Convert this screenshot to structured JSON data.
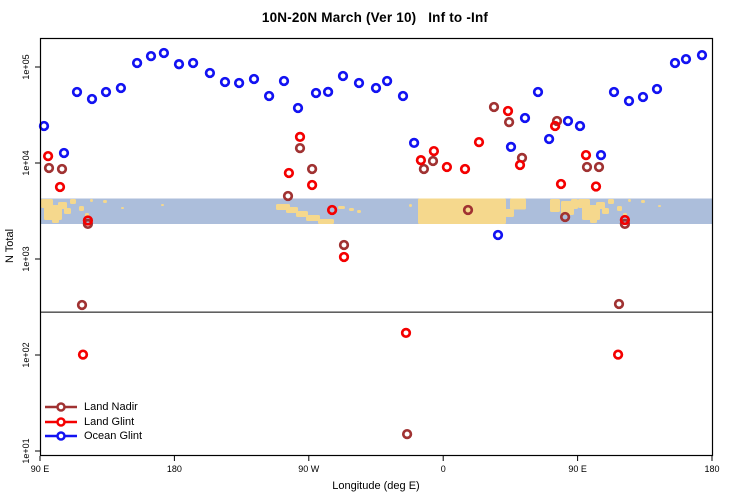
{
  "title": "10N-20N March (Ver 10)   Inf to -Inf",
  "chart_data": {
    "type": "scatter",
    "title": "10N-20N March (Ver 10)   Inf to -Inf",
    "xlabel": "Longitude (deg E)",
    "ylabel": "N Total",
    "grid": false,
    "legend_position": "bottom-left",
    "x_axis": {
      "min": 90,
      "max": 540,
      "ticks": [
        {
          "value": 90,
          "label": "90 E"
        },
        {
          "value": 180,
          "label": "180"
        },
        {
          "value": 270,
          "label": "90 W"
        },
        {
          "value": 360,
          "label": "0"
        },
        {
          "value": 450,
          "label": "90 E"
        },
        {
          "value": 540,
          "label": "180"
        }
      ]
    },
    "y_axis": {
      "scale": "log",
      "min": 10,
      "max": 200000,
      "ticks": [
        {
          "value": 10,
          "label": "1e+01"
        },
        {
          "value": 100,
          "label": "1e+02"
        },
        {
          "value": 1000,
          "label": "1e+03"
        },
        {
          "value": 10000,
          "label": "1e+04"
        },
        {
          "value": 100000,
          "label": "1e+05"
        }
      ]
    },
    "reference_line": {
      "n": 280,
      "color": "#000000"
    },
    "map_band": {
      "n_top": 4300,
      "n_bottom": 2300,
      "ocean_color": "#ACBEDB",
      "land_color": "#F5D88D"
    },
    "series": [
      {
        "name": "Land Nadir",
        "color": "#A03232",
        "points": [
          [
            96.0,
            8870
          ],
          [
            104.7,
            8670
          ],
          [
            118.1,
            332
          ],
          [
            122.1,
            2320
          ],
          [
            256.1,
            4530
          ],
          [
            264.1,
            14300
          ],
          [
            272.2,
            8670
          ],
          [
            293.6,
            1400
          ],
          [
            335.8,
            15
          ],
          [
            347.1,
            8670
          ],
          [
            353.2,
            10500
          ],
          [
            376.6,
            3240
          ],
          [
            394.0,
            38300
          ],
          [
            404.1,
            26700
          ],
          [
            412.8,
            11300
          ],
          [
            436.2,
            27400
          ],
          [
            441.6,
            2740
          ],
          [
            456.3,
            9080
          ],
          [
            464.3,
            9080
          ],
          [
            477.7,
            340
          ],
          [
            481.7,
            2320
          ]
        ]
      },
      {
        "name": "Land Glint",
        "color": "#F40000",
        "points": [
          [
            95.4,
            11800
          ],
          [
            103.4,
            5620
          ],
          [
            118.8,
            101
          ],
          [
            122.1,
            2520
          ],
          [
            256.7,
            7870
          ],
          [
            264.1,
            18700
          ],
          [
            272.2,
            5900
          ],
          [
            285.6,
            3240
          ],
          [
            293.6,
            1050
          ],
          [
            335.1,
            170
          ],
          [
            345.1,
            10700
          ],
          [
            353.8,
            13300
          ],
          [
            362.5,
            9080
          ],
          [
            374.6,
            8670
          ],
          [
            384.0,
            16500
          ],
          [
            403.4,
            34800
          ],
          [
            411.4,
            9530
          ],
          [
            434.9,
            24300
          ],
          [
            438.9,
            6040
          ],
          [
            455.6,
            12100
          ],
          [
            462.3,
            5690
          ],
          [
            477.1,
            101
          ],
          [
            481.7,
            2550
          ]
        ]
      },
      {
        "name": "Ocean Glint",
        "color": "#1212F2",
        "points": [
          [
            92.7,
            24300
          ],
          [
            106.1,
            12700
          ],
          [
            114.8,
            54900
          ],
          [
            124.8,
            46400
          ],
          [
            134.2,
            54900
          ],
          [
            144.2,
            60400
          ],
          [
            155.0,
            110000
          ],
          [
            164.3,
            130000
          ],
          [
            173.0,
            140000
          ],
          [
            183.1,
            107000
          ],
          [
            192.5,
            110000
          ],
          [
            203.8,
            86600
          ],
          [
            213.9,
            69800
          ],
          [
            223.3,
            68100
          ],
          [
            233.3,
            75000
          ],
          [
            243.4,
            49900
          ],
          [
            253.4,
            71500
          ],
          [
            262.8,
            37400
          ],
          [
            274.8,
            53600
          ],
          [
            282.9,
            55000
          ],
          [
            292.9,
            80600
          ],
          [
            303.6,
            68100
          ],
          [
            315.0,
            60400
          ],
          [
            322.4,
            71500
          ],
          [
            333.1,
            49900
          ],
          [
            340.5,
            16200
          ],
          [
            396.7,
            1780
          ],
          [
            405.4,
            14700
          ],
          [
            414.8,
            29400
          ],
          [
            423.5,
            54900
          ],
          [
            430.9,
            17800
          ],
          [
            443.6,
            27400
          ],
          [
            451.6,
            24300
          ],
          [
            465.7,
            12100
          ],
          [
            474.4,
            54900
          ],
          [
            484.4,
            44200
          ],
          [
            493.8,
            48700
          ],
          [
            503.2,
            59000
          ],
          [
            515.2,
            110000
          ],
          [
            522.6,
            121000
          ],
          [
            533.3,
            133000
          ]
        ]
      }
    ]
  }
}
